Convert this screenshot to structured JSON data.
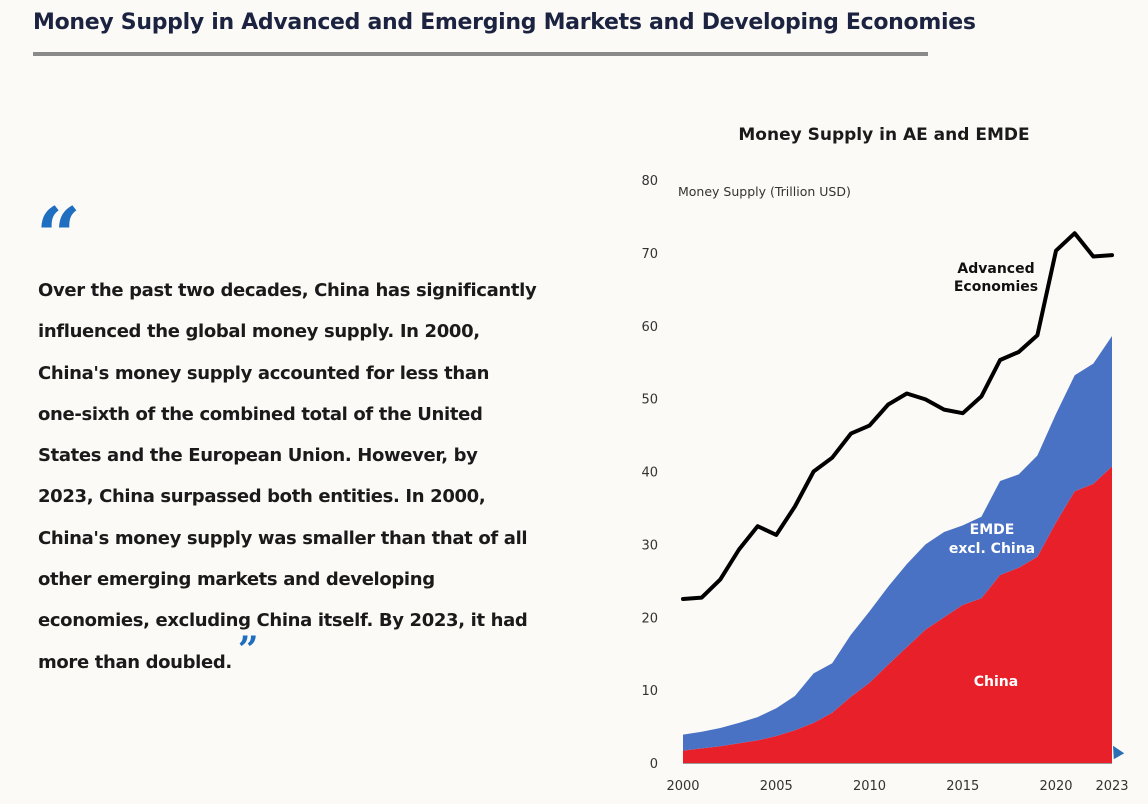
{
  "header": {
    "title": "Money Supply in Advanced and Emerging Markets and Developing Economies"
  },
  "quote": {
    "open_mark": "“",
    "text": "Over the past two decades, China has significantly influenced the global money supply. In 2000, China's money supply accounted for less than one-sixth of the combined total of the United States and the European Union. However, by 2023, China surpassed both entities. In 2000, China's money supply was smaller than that of all other emerging markets and developing economies, excluding China itself. By 2023, it had more than doubled.",
    "close_mark": "”"
  },
  "colors": {
    "title": "#1c2340",
    "rule": "#8a8a8a",
    "quote_mark": "#1f6ec0",
    "china": "#e8202a",
    "emde": "#4a72c4",
    "ae": "#000000"
  },
  "chart_data": {
    "type": "area",
    "title": "Money Supply in AE and EMDE",
    "ylabel": "Money Supply (Trillion USD)",
    "xlabel": "",
    "ylim": [
      0,
      80
    ],
    "yticks": [
      0,
      10,
      20,
      30,
      40,
      50,
      60,
      70,
      80
    ],
    "xticks": [
      "2000",
      "2005",
      "2010",
      "2015",
      "2020",
      "2023"
    ],
    "xlim": [
      2000,
      2023
    ],
    "grid": false,
    "x": [
      2000,
      2001,
      2002,
      2003,
      2004,
      2005,
      2006,
      2007,
      2008,
      2009,
      2010,
      2011,
      2012,
      2013,
      2014,
      2015,
      2016,
      2017,
      2018,
      2019,
      2020,
      2021,
      2022,
      2023
    ],
    "series": [
      {
        "name": "China",
        "kind": "stacked-area",
        "color": "#e8202a",
        "values": [
          1.7,
          2.0,
          2.3,
          2.7,
          3.1,
          3.7,
          4.5,
          5.5,
          6.9,
          9.1,
          11.0,
          13.5,
          15.9,
          18.3,
          20.0,
          21.7,
          22.6,
          25.8,
          26.8,
          28.3,
          33.0,
          37.3,
          38.3,
          40.7
        ]
      },
      {
        "name": "EMDE excl. China",
        "kind": "stacked-area",
        "color": "#4a72c4",
        "values": [
          2.2,
          2.3,
          2.5,
          2.8,
          3.2,
          3.8,
          4.7,
          6.8,
          6.8,
          8.5,
          9.8,
          10.7,
          11.4,
          11.7,
          11.7,
          10.9,
          11.2,
          12.9,
          12.8,
          13.9,
          14.9,
          15.9,
          16.5,
          17.9
        ]
      },
      {
        "name": "Advanced Economies",
        "kind": "line",
        "color": "#000000",
        "values": [
          22.5,
          22.7,
          25.2,
          29.3,
          32.5,
          31.3,
          35.2,
          40.0,
          41.9,
          45.2,
          46.3,
          49.2,
          50.7,
          49.9,
          48.5,
          48.0,
          50.3,
          55.3,
          56.4,
          58.7,
          70.3,
          72.7,
          69.5,
          69.7
        ]
      }
    ],
    "series_labels": {
      "china": "China",
      "emde_line1": "EMDE",
      "emde_line2": "excl. China",
      "ae_line1": "Advanced",
      "ae_line2": "Economies"
    }
  }
}
